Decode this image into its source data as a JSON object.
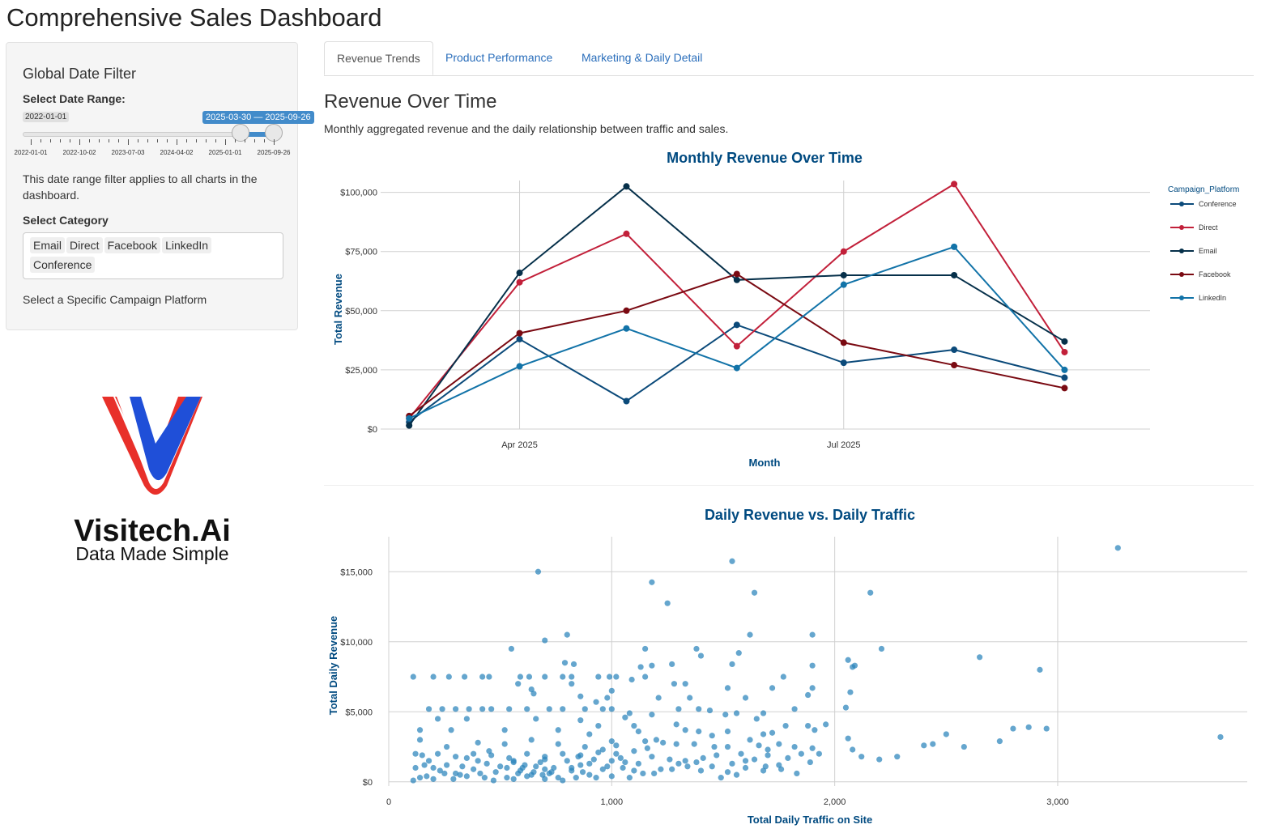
{
  "app": {
    "title": "Comprehensive Sales Dashboard"
  },
  "sidebar": {
    "title": "Global Date Filter",
    "date_label": "Select Date Range:",
    "slider": {
      "min_value": "2022-01-01",
      "range_value": "2025-03-30 — 2025-09-26",
      "ticks": [
        "2022-01-01",
        "2022-10-02",
        "2023-07-03",
        "2024-04-02",
        "2025-01-01",
        "2025-09-26"
      ],
      "low_fraction": 0.84,
      "high_fraction": 0.97
    },
    "description": "This date range filter applies to all charts in the dashboard.",
    "category_label": "Select Category",
    "categories": [
      "Email",
      "Direct",
      "Facebook",
      "LinkedIn",
      "Conference"
    ],
    "footer": "Select a Specific Campaign Platform"
  },
  "logo": {
    "name": "Visitech.Ai",
    "tagline": "Data Made Simple"
  },
  "tabs": [
    "Revenue Trends",
    "Product Performance",
    "Marketing & Daily Detail"
  ],
  "main": {
    "title": "Revenue Over Time",
    "subtitle": "Monthly aggregated revenue and the daily relationship between traffic and sales."
  },
  "colors": {
    "Conference": "#0b4a7a",
    "Direct": "#c2203a",
    "Email": "#06304a",
    "Facebook": "#7a0a12",
    "LinkedIn": "#1273a8",
    "scatter": "#2a84bb"
  },
  "chart_data": [
    {
      "type": "line",
      "title": "Monthly Revenue Over Time",
      "xlabel": "Month",
      "ylabel": "Total Revenue",
      "x": [
        "2025-03-01",
        "2025-04-01",
        "2025-05-01",
        "2025-06-01",
        "2025-07-01",
        "2025-08-01",
        "2025-09-01"
      ],
      "x_ticks": [
        {
          "value": "2025-04-01",
          "label": "Apr 2025"
        },
        {
          "value": "2025-07-01",
          "label": "Jul 2025"
        }
      ],
      "ylim": [
        0,
        105000
      ],
      "y_ticks": [
        0,
        25000,
        50000,
        75000,
        100000
      ],
      "y_tick_labels": [
        "$0",
        "$25,000",
        "$50,000",
        "$75,000",
        "$100,000"
      ],
      "legend_title": "Campaign_Platform",
      "legend_position": "right",
      "grid": true,
      "series": [
        {
          "name": "Conference",
          "values": [
            3000,
            38000,
            11800,
            44000,
            28000,
            33500,
            21700
          ]
        },
        {
          "name": "Direct",
          "values": [
            4500,
            62000,
            82500,
            35000,
            75000,
            103500,
            32500
          ]
        },
        {
          "name": "Email",
          "values": [
            1500,
            66000,
            102500,
            63000,
            65000,
            65000,
            37000
          ]
        },
        {
          "name": "Facebook",
          "values": [
            5500,
            40500,
            50000,
            65500,
            36500,
            27000,
            17300
          ]
        },
        {
          "name": "LinkedIn",
          "values": [
            4500,
            26500,
            42500,
            25800,
            61000,
            77000,
            25000
          ]
        }
      ]
    },
    {
      "type": "scatter",
      "title": "Daily Revenue vs. Daily Traffic",
      "xlabel": "Total Daily Traffic on Site",
      "ylabel": "Total Daily Revenue",
      "xlim": [
        0,
        3850
      ],
      "ylim": [
        -300,
        17500
      ],
      "x_ticks": [
        0,
        1000,
        2000,
        3000
      ],
      "x_tick_labels": [
        "0",
        "1,000",
        "2,000",
        "3,000"
      ],
      "y_ticks": [
        0,
        5000,
        10000,
        15000
      ],
      "y_tick_labels": [
        "$0",
        "$5,000",
        "$10,000",
        "$15,000"
      ],
      "grid": true,
      "points": [
        [
          670,
          15000
        ],
        [
          1540,
          15750
        ],
        [
          3270,
          16700
        ],
        [
          1180,
          14250
        ],
        [
          1250,
          12750
        ],
        [
          1640,
          13500
        ],
        [
          2160,
          13500
        ],
        [
          700,
          10100
        ],
        [
          800,
          10500
        ],
        [
          1620,
          10500
        ],
        [
          1900,
          10500
        ],
        [
          550,
          9500
        ],
        [
          1150,
          9500
        ],
        [
          1380,
          9500
        ],
        [
          1570,
          9200
        ],
        [
          2210,
          9500
        ],
        [
          2650,
          8900
        ],
        [
          2920,
          8000
        ],
        [
          2060,
          8700
        ],
        [
          2080,
          8200
        ],
        [
          2090,
          8300
        ],
        [
          1130,
          8200
        ],
        [
          1180,
          8300
        ],
        [
          1270,
          8400
        ],
        [
          1400,
          9000
        ],
        [
          1540,
          8400
        ],
        [
          1900,
          8300
        ],
        [
          790,
          8500
        ],
        [
          830,
          8400
        ],
        [
          110,
          7500
        ],
        [
          200,
          7500
        ],
        [
          270,
          7500
        ],
        [
          340,
          7500
        ],
        [
          420,
          7500
        ],
        [
          450,
          7500
        ],
        [
          590,
          7500
        ],
        [
          630,
          7500
        ],
        [
          700,
          7500
        ],
        [
          780,
          7500
        ],
        [
          820,
          7500
        ],
        [
          940,
          7500
        ],
        [
          990,
          7500
        ],
        [
          1020,
          7500
        ],
        [
          1150,
          7500
        ],
        [
          1770,
          7500
        ],
        [
          1280,
          7000
        ],
        [
          1330,
          7000
        ],
        [
          1880,
          6200
        ],
        [
          1720,
          6700
        ],
        [
          1900,
          6700
        ],
        [
          2070,
          6400
        ],
        [
          1210,
          6000
        ],
        [
          1600,
          6000
        ],
        [
          650,
          6300
        ],
        [
          860,
          6100
        ],
        [
          980,
          6000
        ],
        [
          2050,
          5300
        ],
        [
          180,
          5200
        ],
        [
          240,
          5200
        ],
        [
          300,
          5200
        ],
        [
          360,
          5200
        ],
        [
          420,
          5200
        ],
        [
          460,
          5200
        ],
        [
          540,
          5200
        ],
        [
          620,
          5200
        ],
        [
          720,
          5200
        ],
        [
          780,
          5200
        ],
        [
          880,
          5200
        ],
        [
          960,
          5200
        ],
        [
          1000,
          5200
        ],
        [
          1300,
          5200
        ],
        [
          1390,
          5200
        ],
        [
          1440,
          5100
        ],
        [
          1560,
          4900
        ],
        [
          1680,
          4900
        ],
        [
          1820,
          5200
        ],
        [
          1060,
          4600
        ],
        [
          1080,
          4900
        ],
        [
          1180,
          4800
        ],
        [
          1510,
          4800
        ],
        [
          1650,
          4500
        ],
        [
          220,
          4500
        ],
        [
          350,
          4500
        ],
        [
          660,
          4500
        ],
        [
          940,
          4000
        ],
        [
          1100,
          4000
        ],
        [
          1880,
          4000
        ],
        [
          1960,
          4100
        ],
        [
          140,
          3700
        ],
        [
          280,
          3700
        ],
        [
          520,
          3700
        ],
        [
          760,
          3700
        ],
        [
          1330,
          3700
        ],
        [
          1390,
          3600
        ],
        [
          1520,
          3600
        ],
        [
          1680,
          3400
        ],
        [
          1720,
          3500
        ],
        [
          2500,
          3400
        ],
        [
          2870,
          3900
        ],
        [
          2950,
          3800
        ],
        [
          2800,
          3800
        ],
        [
          2740,
          2900
        ],
        [
          3730,
          3200
        ],
        [
          2060,
          3100
        ],
        [
          2440,
          2700
        ],
        [
          2400,
          2600
        ],
        [
          2580,
          2500
        ],
        [
          2080,
          2300
        ],
        [
          2120,
          1800
        ],
        [
          2200,
          1600
        ],
        [
          2280,
          1800
        ],
        [
          1620,
          3000
        ],
        [
          1660,
          2600
        ],
        [
          1750,
          2700
        ],
        [
          1820,
          2500
        ],
        [
          1900,
          2400
        ],
        [
          1850,
          2000
        ],
        [
          1230,
          2800
        ],
        [
          1290,
          2700
        ],
        [
          1370,
          2700
        ],
        [
          1460,
          2500
        ],
        [
          1520,
          2500
        ],
        [
          1580,
          2000
        ],
        [
          1700,
          1900
        ],
        [
          1790,
          1700
        ],
        [
          1750,
          1200
        ],
        [
          1640,
          1600
        ],
        [
          1680,
          800
        ],
        [
          1560,
          500
        ],
        [
          1490,
          300
        ],
        [
          1400,
          800
        ],
        [
          1340,
          1100
        ],
        [
          1270,
          900
        ],
        [
          1190,
          600
        ],
        [
          1100,
          800
        ],
        [
          1060,
          1400
        ],
        [
          960,
          900
        ],
        [
          900,
          500
        ],
        [
          840,
          300
        ],
        [
          780,
          100
        ],
        [
          700,
          200
        ],
        [
          640,
          500
        ],
        [
          590,
          800
        ],
        [
          530,
          300
        ],
        [
          470,
          100
        ],
        [
          410,
          600
        ],
        [
          350,
          400
        ],
        [
          290,
          200
        ],
        [
          230,
          800
        ],
        [
          170,
          400
        ],
        [
          110,
          100
        ],
        [
          120,
          1000
        ],
        [
          160,
          1200
        ],
        [
          200,
          1000
        ],
        [
          260,
          1200
        ],
        [
          330,
          1100
        ],
        [
          380,
          900
        ],
        [
          440,
          1300
        ],
        [
          500,
          1100
        ],
        [
          560,
          1500
        ],
        [
          610,
          1200
        ],
        [
          680,
          1400
        ],
        [
          740,
          1000
        ],
        [
          800,
          1500
        ],
        [
          860,
          1200
        ],
        [
          920,
          1600
        ],
        [
          980,
          1100
        ],
        [
          1040,
          1700
        ],
        [
          1120,
          1300
        ],
        [
          1180,
          1800
        ],
        [
          1260,
          1600
        ],
        [
          1330,
          1500
        ],
        [
          1410,
          1700
        ],
        [
          1470,
          1900
        ],
        [
          1540,
          1300
        ],
        [
          1600,
          1500
        ],
        [
          1690,
          1100
        ],
        [
          1760,
          900
        ],
        [
          1830,
          600
        ],
        [
          1890,
          1400
        ],
        [
          150,
          1900
        ],
        [
          220,
          2000
        ],
        [
          300,
          1800
        ],
        [
          380,
          2000
        ],
        [
          460,
          1900
        ],
        [
          540,
          1700
        ],
        [
          620,
          2000
        ],
        [
          700,
          1800
        ],
        [
          780,
          2000
        ],
        [
          860,
          1900
        ],
        [
          940,
          2100
        ],
        [
          1020,
          2000
        ],
        [
          1100,
          2200
        ],
        [
          1160,
          2400
        ],
        [
          140,
          3000
        ],
        [
          260,
          2500
        ],
        [
          400,
          2800
        ],
        [
          520,
          2700
        ],
        [
          640,
          3000
        ],
        [
          760,
          2700
        ],
        [
          880,
          2500
        ],
        [
          1000,
          2900
        ],
        [
          320,
          500
        ],
        [
          480,
          700
        ],
        [
          650,
          700
        ],
        [
          720,
          600
        ],
        [
          820,
          800
        ],
        [
          1000,
          400
        ],
        [
          560,
          200
        ],
        [
          430,
          300
        ],
        [
          250,
          600
        ],
        [
          140,
          300
        ],
        [
          600,
          1000
        ],
        [
          660,
          1100
        ],
        [
          760,
          300
        ],
        [
          900,
          1300
        ],
        [
          1000,
          1500
        ],
        [
          1020,
          2600
        ],
        [
          400,
          1500
        ],
        [
          300,
          600
        ],
        [
          700,
          900
        ],
        [
          530,
          1000
        ],
        [
          580,
          600
        ],
        [
          620,
          400
        ],
        [
          690,
          500
        ],
        [
          730,
          700
        ],
        [
          870,
          700
        ],
        [
          930,
          300
        ],
        [
          1080,
          300
        ],
        [
          1140,
          600
        ],
        [
          1220,
          900
        ],
        [
          1300,
          1300
        ],
        [
          1380,
          1400
        ],
        [
          1450,
          1100
        ],
        [
          1520,
          700
        ],
        [
          1600,
          1000
        ],
        [
          200,
          200
        ],
        [
          350,
          1700
        ],
        [
          450,
          2200
        ],
        [
          820,
          1000
        ],
        [
          850,
          1800
        ],
        [
          960,
          2300
        ],
        [
          1700,
          2300
        ],
        [
          1780,
          4000
        ],
        [
          1910,
          3700
        ],
        [
          1930,
          2000
        ],
        [
          1350,
          6000
        ],
        [
          1520,
          6700
        ],
        [
          1450,
          3300
        ],
        [
          1000,
          6500
        ],
        [
          1090,
          7300
        ],
        [
          930,
          5700
        ],
        [
          580,
          7000
        ],
        [
          820,
          7000
        ],
        [
          640,
          6600
        ],
        [
          1200,
          3000
        ],
        [
          1120,
          3600
        ],
        [
          1150,
          2900
        ],
        [
          860,
          4400
        ],
        [
          900,
          3400
        ],
        [
          1290,
          4100
        ],
        [
          120,
          2000
        ],
        [
          180,
          1500
        ],
        [
          560,
          1400
        ],
        [
          700,
          1600
        ],
        [
          1050,
          1000
        ]
      ]
    }
  ]
}
